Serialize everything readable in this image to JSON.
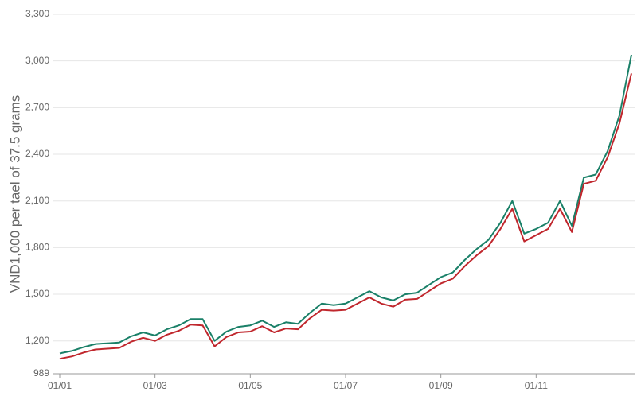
{
  "chart_data": {
    "type": "line",
    "y_label": "VND1,000 per tael of 37.5 grams",
    "categories": [
      "01/01",
      null,
      null,
      null,
      null,
      null,
      null,
      null,
      "01/03",
      null,
      null,
      null,
      null,
      null,
      null,
      null,
      "01/05",
      null,
      null,
      null,
      null,
      null,
      null,
      null,
      "01/07",
      null,
      null,
      null,
      null,
      null,
      null,
      null,
      "01/09",
      null,
      null,
      null,
      null,
      null,
      null,
      null,
      "01/11",
      null,
      null,
      null,
      null,
      null,
      null,
      null,
      null
    ],
    "series": [
      {
        "color": "#1a8068",
        "values": [
          1120,
          1135,
          1160,
          1180,
          1185,
          1190,
          1230,
          1255,
          1235,
          1275,
          1300,
          1340,
          1340,
          1200,
          1260,
          1290,
          1300,
          1330,
          1290,
          1320,
          1310,
          1380,
          1440,
          1430,
          1440,
          1480,
          1520,
          1480,
          1460,
          1500,
          1510,
          1560,
          1610,
          1640,
          1720,
          1790,
          1850,
          1960,
          2100,
          1890,
          1920,
          1960,
          2100,
          1940,
          2250,
          2270,
          2420,
          2650,
          3040
        ]
      },
      {
        "color": "#c0272d",
        "values": [
          1085,
          1100,
          1125,
          1145,
          1150,
          1155,
          1195,
          1220,
          1200,
          1240,
          1265,
          1305,
          1300,
          1165,
          1225,
          1255,
          1260,
          1295,
          1255,
          1280,
          1275,
          1345,
          1400,
          1395,
          1400,
          1440,
          1480,
          1440,
          1420,
          1465,
          1470,
          1520,
          1570,
          1600,
          1680,
          1750,
          1810,
          1920,
          2050,
          1840,
          1880,
          1920,
          2050,
          1900,
          2210,
          2230,
          2380,
          2600,
          2920
        ]
      }
    ],
    "ylim": [
      989,
      3300
    ],
    "yticks": [
      989,
      {
        "value": 1200,
        "label": "1,200"
      },
      {
        "value": 1500,
        "label": "1,500"
      },
      {
        "value": 1800,
        "label": "1,800"
      },
      {
        "value": 2100,
        "label": "2,100"
      },
      {
        "value": 2400,
        "label": "2,400"
      },
      {
        "value": 2700,
        "label": "2,700"
      },
      {
        "value": 3000,
        "label": "3,000"
      },
      {
        "value": 3300,
        "label": "3,300"
      }
    ],
    "grid": true
  }
}
